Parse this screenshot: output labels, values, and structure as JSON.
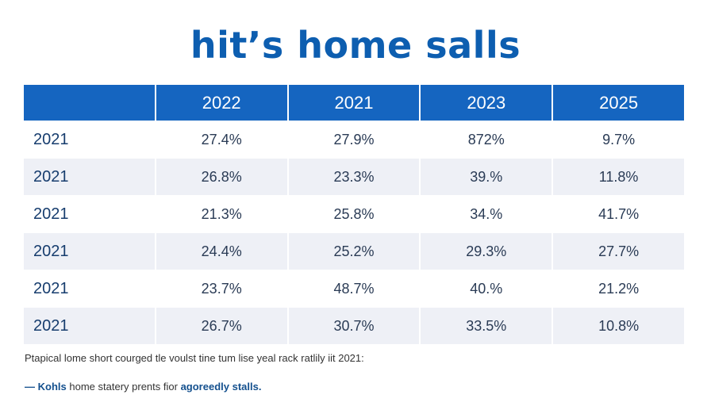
{
  "title": "hit’s home salls",
  "table": {
    "headers": [
      "",
      "2022",
      "2021",
      "2023",
      "2025"
    ],
    "rows": [
      {
        "label": "2021",
        "values": [
          "27.4%",
          "27.9%",
          "872%",
          "9.7%"
        ]
      },
      {
        "label": "2021",
        "values": [
          "26.8%",
          "23.3%",
          "39.%",
          "11.8%"
        ]
      },
      {
        "label": "2021",
        "values": [
          "21.3%",
          "25.8%",
          "34.%",
          "41.7%"
        ]
      },
      {
        "label": "2021",
        "values": [
          "24.4%",
          "25.2%",
          "29.3%",
          "27.7%"
        ]
      },
      {
        "label": "2021",
        "values": [
          "23.7%",
          "48.7%",
          "40.%",
          "21.2%"
        ]
      },
      {
        "label": "2021",
        "values": [
          "26.7%",
          "30.7%",
          "33.5%",
          "10.8%"
        ]
      }
    ]
  },
  "note": "Ptapical lome short courged tle voulst tine tum lise yeal rack ratlily iit 2021:",
  "credit": {
    "dash": "—",
    "source": "Kohls",
    "middle": "home statery prents fior",
    "emphasis": "agoreedly stalls."
  },
  "colors": {
    "accent": "#1565c0",
    "title": "#0d5eb0",
    "row_alt": "#eef0f6"
  }
}
